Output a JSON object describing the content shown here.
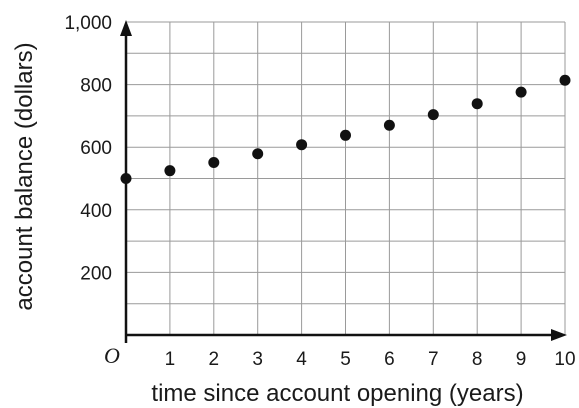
{
  "chart_data": {
    "type": "scatter",
    "xlabel": "time since account opening (years)",
    "ylabel": "account balance (dollars)",
    "origin_label": "O",
    "xlim": [
      0,
      10
    ],
    "ylim": [
      0,
      1000
    ],
    "x_ticks": [
      "1",
      "2",
      "3",
      "4",
      "5",
      "6",
      "7",
      "8",
      "9",
      "10"
    ],
    "y_ticks": [
      "200",
      "400",
      "600",
      "800",
      "1,000"
    ],
    "grid": true,
    "points": [
      {
        "x": 0,
        "y": 500
      },
      {
        "x": 1,
        "y": 525
      },
      {
        "x": 2,
        "y": 551
      },
      {
        "x": 3,
        "y": 579
      },
      {
        "x": 4,
        "y": 608
      },
      {
        "x": 5,
        "y": 638
      },
      {
        "x": 6,
        "y": 670
      },
      {
        "x": 7,
        "y": 704
      },
      {
        "x": 8,
        "y": 739
      },
      {
        "x": 9,
        "y": 776
      },
      {
        "x": 10,
        "y": 814
      }
    ],
    "colors": {
      "grid": "#9a9a9a",
      "axis": "#111111",
      "point": "#111111"
    }
  }
}
